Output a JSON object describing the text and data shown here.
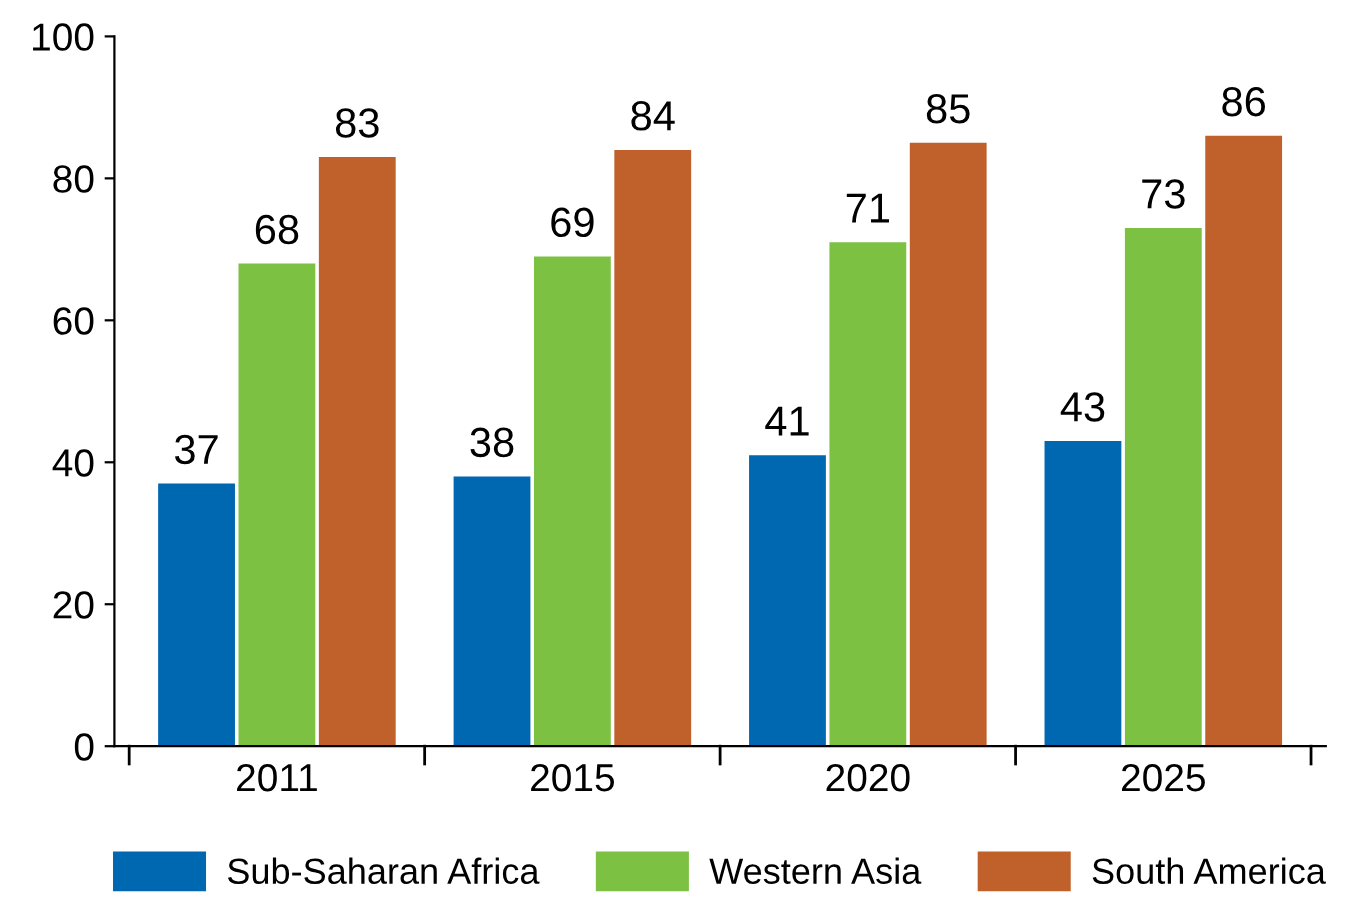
{
  "chart_data": {
    "type": "bar",
    "categories": [
      "2011",
      "2015",
      "2020",
      "2025"
    ],
    "series": [
      {
        "name": "Sub-Saharan Africa",
        "color": "#0067b1",
        "values": [
          37,
          38,
          41,
          43
        ]
      },
      {
        "name": "Western Asia",
        "color": "#7dc142",
        "values": [
          68,
          69,
          71,
          73
        ]
      },
      {
        "name": "South America",
        "color": "#c0602a",
        "values": [
          83,
          84,
          85,
          86
        ]
      }
    ],
    "ylim": [
      0,
      100
    ],
    "yticks": [
      0,
      20,
      40,
      60,
      80,
      100
    ],
    "data_labels": true,
    "legend": "bottom",
    "grid": false
  }
}
